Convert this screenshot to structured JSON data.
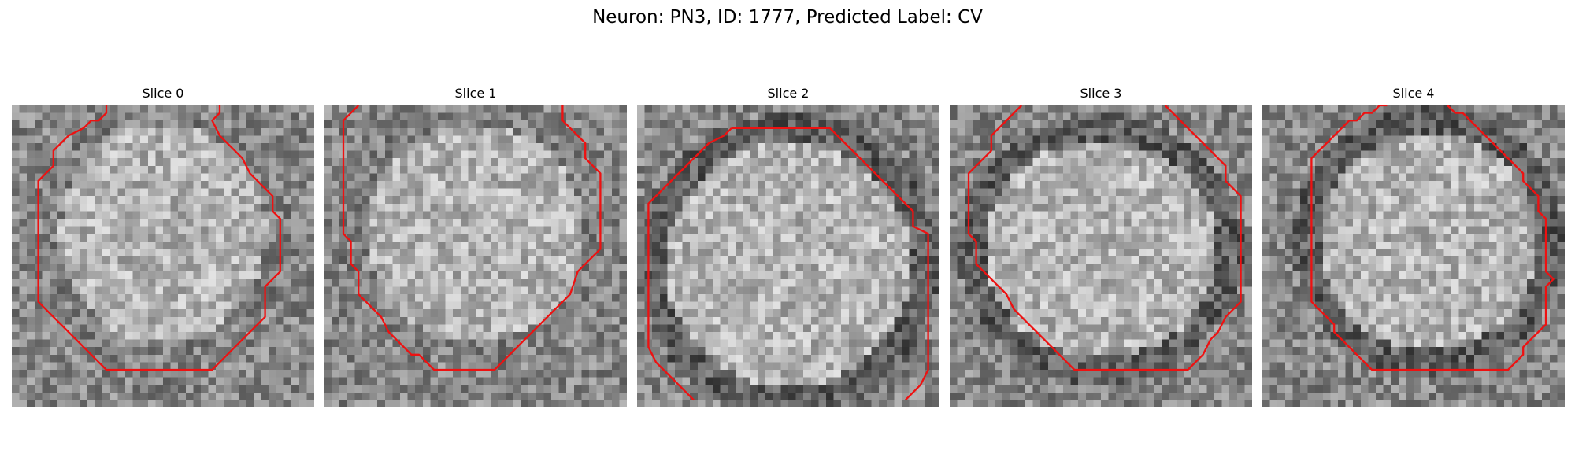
{
  "figure": {
    "title": "Neuron: PN3, ID: 1777, Predicted Label: CV",
    "contour_color": "#ee1111",
    "colormap": "gray"
  },
  "slices": [
    {
      "title": "Slice 0",
      "contour_segments": [
        [
          [
            12.5,
            0
          ],
          [
            12.5,
            1
          ],
          [
            11.5,
            2
          ],
          [
            10.5,
            2
          ],
          [
            9.5,
            3
          ],
          [
            7.5,
            4
          ],
          [
            6.5,
            5
          ],
          [
            5.5,
            6
          ],
          [
            5.5,
            8
          ],
          [
            4.5,
            9
          ],
          [
            3.5,
            10
          ],
          [
            3.5,
            17
          ],
          [
            3.5,
            26
          ],
          [
            5.5,
            28
          ],
          [
            7.5,
            30
          ],
          [
            8.5,
            31
          ],
          [
            9.5,
            32
          ],
          [
            11.5,
            34
          ],
          [
            12.5,
            35
          ],
          [
            26.5,
            35
          ],
          [
            27.5,
            34
          ],
          [
            29.5,
            32
          ],
          [
            30.5,
            31
          ],
          [
            31.5,
            30
          ],
          [
            32.5,
            29
          ],
          [
            33.5,
            28
          ],
          [
            33.5,
            24
          ],
          [
            34.5,
            23
          ],
          [
            35.5,
            22
          ],
          [
            35.5,
            18
          ],
          [
            35.5,
            15
          ],
          [
            34.5,
            14
          ],
          [
            34.5,
            12
          ],
          [
            33.5,
            11
          ],
          [
            32.5,
            10
          ],
          [
            31.5,
            9
          ],
          [
            30.5,
            7
          ],
          [
            29.5,
            6
          ],
          [
            28.5,
            5
          ],
          [
            27.5,
            4
          ],
          [
            26.5,
            2
          ],
          [
            27.5,
            1
          ],
          [
            27.5,
            0
          ]
        ]
      ]
    },
    {
      "title": "Slice 1",
      "contour_segments": [
        [
          [
            4.5,
            0
          ],
          [
            3.5,
            1
          ],
          [
            2.5,
            2
          ],
          [
            2.5,
            3
          ],
          [
            2.5,
            10
          ],
          [
            2.5,
            17
          ],
          [
            3.5,
            18
          ],
          [
            3.5,
            21
          ],
          [
            4.5,
            22
          ],
          [
            4.5,
            25
          ],
          [
            5.5,
            26
          ],
          [
            6.5,
            27
          ],
          [
            7.5,
            28
          ],
          [
            8.5,
            30
          ],
          [
            9.5,
            31
          ],
          [
            10.5,
            32
          ],
          [
            11.5,
            33
          ],
          [
            12.5,
            33
          ],
          [
            13.5,
            34
          ],
          [
            14.5,
            35
          ],
          [
            22.5,
            35
          ],
          [
            23.5,
            34
          ],
          [
            24.5,
            33
          ],
          [
            25.5,
            32
          ],
          [
            26.5,
            31
          ],
          [
            27.5,
            30
          ],
          [
            28.5,
            29
          ],
          [
            29.5,
            28
          ],
          [
            30.5,
            27
          ],
          [
            31.5,
            26
          ],
          [
            32.5,
            25
          ],
          [
            33.5,
            22
          ],
          [
            35.5,
            20
          ],
          [
            36.5,
            19
          ],
          [
            36.5,
            15
          ],
          [
            36.5,
            9
          ],
          [
            35.5,
            8
          ],
          [
            34.5,
            7
          ],
          [
            34.5,
            5
          ],
          [
            33.5,
            4
          ],
          [
            32.5,
            3
          ],
          [
            31.5,
            2
          ],
          [
            31.5,
            0
          ]
        ]
      ]
    },
    {
      "title": "Slice 2",
      "contour_segments": [
        [
          [
            12.5,
            3
          ],
          [
            11.5,
            4
          ],
          [
            9.5,
            5
          ],
          [
            8.5,
            6
          ],
          [
            7.5,
            7
          ],
          [
            6.5,
            8
          ],
          [
            5.5,
            9
          ],
          [
            4.5,
            10
          ],
          [
            3.5,
            11
          ],
          [
            2.5,
            12
          ],
          [
            1.5,
            13
          ],
          [
            1.5,
            19
          ],
          [
            1.5,
            32
          ],
          [
            2.5,
            34
          ],
          [
            3.5,
            35
          ],
          [
            4.5,
            36
          ],
          [
            5.5,
            37
          ],
          [
            6.5,
            38
          ],
          [
            7.5,
            39
          ]
        ],
        [
          [
            12.5,
            3
          ],
          [
            17.5,
            3
          ],
          [
            25.5,
            3
          ],
          [
            26.5,
            4
          ],
          [
            27.5,
            5
          ],
          [
            28.5,
            6
          ],
          [
            29.5,
            7
          ],
          [
            30.5,
            8
          ],
          [
            31.5,
            9
          ],
          [
            32.5,
            10
          ],
          [
            33.5,
            11
          ],
          [
            34.5,
            12
          ],
          [
            35.5,
            13
          ],
          [
            36.5,
            14
          ],
          [
            36.5,
            16
          ],
          [
            38.5,
            17
          ],
          [
            38.5,
            22
          ],
          [
            38.5,
            35
          ],
          [
            37.5,
            37
          ],
          [
            36.5,
            38
          ],
          [
            35.5,
            39
          ]
        ]
      ]
    },
    {
      "title": "Slice 3",
      "contour_segments": [
        [
          [
            9.5,
            0
          ],
          [
            8.5,
            1
          ],
          [
            7.5,
            2
          ],
          [
            6.5,
            3
          ],
          [
            5.5,
            4
          ],
          [
            5.5,
            6
          ],
          [
            4.5,
            7
          ],
          [
            3.5,
            8
          ],
          [
            2.5,
            9
          ],
          [
            2.5,
            13
          ],
          [
            2.5,
            17
          ],
          [
            3.5,
            18
          ],
          [
            3.5,
            21
          ],
          [
            4.5,
            22
          ],
          [
            5.5,
            23
          ],
          [
            6.5,
            24
          ],
          [
            7.5,
            25
          ],
          [
            8.5,
            27
          ],
          [
            9.5,
            28
          ],
          [
            10.5,
            29
          ],
          [
            11.5,
            30
          ],
          [
            12.5,
            31
          ],
          [
            13.5,
            32
          ],
          [
            14.5,
            33
          ],
          [
            15.5,
            34
          ],
          [
            16.5,
            35
          ],
          [
            22.5,
            35
          ],
          [
            31.5,
            35
          ],
          [
            32.5,
            34
          ],
          [
            33.5,
            33
          ],
          [
            34.5,
            31
          ],
          [
            35.5,
            30
          ],
          [
            36.5,
            28
          ],
          [
            38.5,
            26
          ],
          [
            38.5,
            20
          ],
          [
            38.5,
            12
          ],
          [
            37.5,
            11
          ],
          [
            36.5,
            10
          ],
          [
            36.5,
            8
          ],
          [
            35.5,
            7
          ],
          [
            34.5,
            6
          ],
          [
            33.5,
            5
          ],
          [
            32.5,
            4
          ],
          [
            31.5,
            3
          ],
          [
            30.5,
            2
          ],
          [
            29.5,
            1
          ],
          [
            28.5,
            0
          ]
        ]
      ]
    },
    {
      "title": "Slice 4",
      "contour_segments": [
        [
          [
            16.5,
            0
          ],
          [
            15.5,
            0
          ],
          [
            14.5,
            1
          ],
          [
            13.5,
            1
          ],
          [
            12.5,
            2
          ],
          [
            11.5,
            2
          ],
          [
            10.5,
            3
          ],
          [
            9.5,
            4
          ],
          [
            8.5,
            5
          ],
          [
            7.5,
            6
          ],
          [
            6.5,
            7
          ],
          [
            6.5,
            12
          ],
          [
            6.5,
            26
          ],
          [
            7.5,
            27
          ],
          [
            8.5,
            28
          ],
          [
            9.5,
            29
          ],
          [
            9.5,
            30
          ],
          [
            10.5,
            31
          ],
          [
            11.5,
            32
          ],
          [
            12.5,
            33
          ],
          [
            13.5,
            34
          ],
          [
            14.5,
            35
          ],
          [
            22.5,
            35
          ],
          [
            32.5,
            35
          ],
          [
            33.5,
            34
          ],
          [
            34.5,
            33
          ],
          [
            34.5,
            32
          ],
          [
            35.5,
            31
          ],
          [
            36.5,
            30
          ],
          [
            37.5,
            29
          ],
          [
            37.5,
            27
          ],
          [
            37.5,
            24
          ],
          [
            38.5,
            23
          ],
          [
            37.5,
            22
          ],
          [
            37.5,
            18
          ],
          [
            37.5,
            15
          ],
          [
            36.5,
            14
          ],
          [
            36.5,
            12
          ],
          [
            35.5,
            11
          ],
          [
            34.5,
            10
          ],
          [
            34.5,
            9
          ],
          [
            33.5,
            8
          ],
          [
            32.5,
            7
          ],
          [
            31.5,
            6
          ],
          [
            30.5,
            5
          ],
          [
            29.5,
            4
          ],
          [
            28.5,
            3
          ],
          [
            27.5,
            2
          ],
          [
            26.5,
            1
          ],
          [
            25.5,
            1
          ],
          [
            24.5,
            0
          ]
        ]
      ]
    }
  ]
}
